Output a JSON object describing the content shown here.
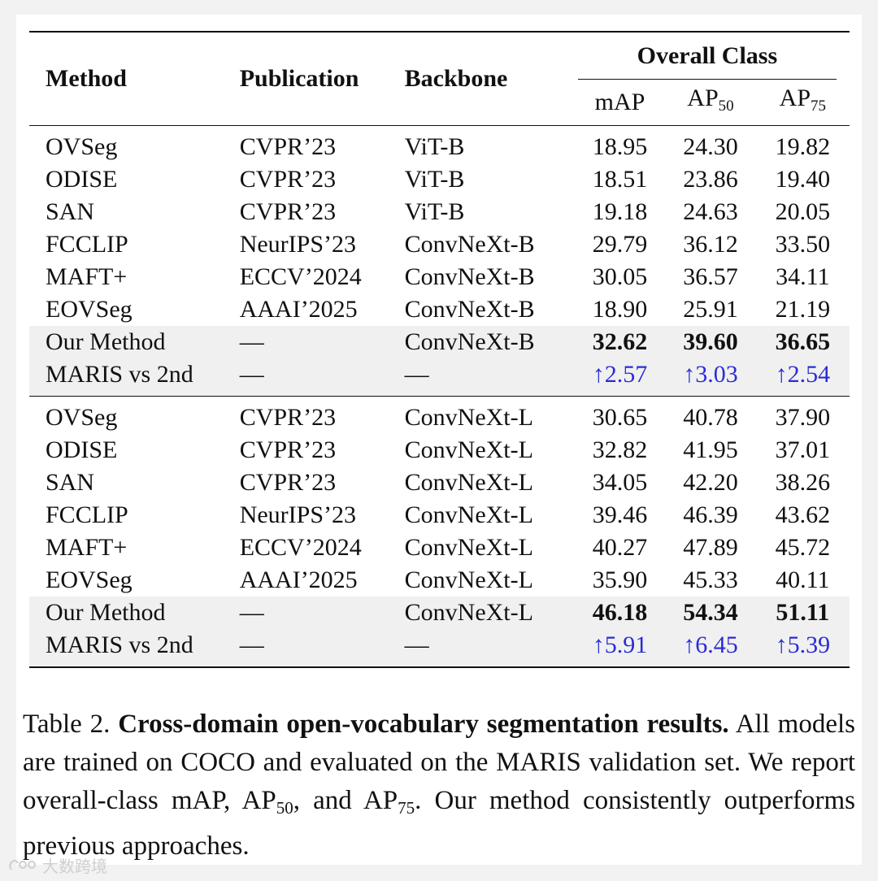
{
  "table": {
    "headers": {
      "method": "Method",
      "publication": "Publication",
      "backbone": "Backbone",
      "group": "Overall Class",
      "map": "mAP",
      "ap50_base": "AP",
      "ap50_sub": "50",
      "ap75_base": "AP",
      "ap75_sub": "75"
    },
    "block1": [
      {
        "method": "OVSeg",
        "pub": "CVPR’23",
        "bb": "ViT-B",
        "map": "18.95",
        "ap50": "24.30",
        "ap75": "19.82"
      },
      {
        "method": "ODISE",
        "pub": "CVPR’23",
        "bb": "ViT-B",
        "map": "18.51",
        "ap50": "23.86",
        "ap75": "19.40"
      },
      {
        "method": "SAN",
        "pub": "CVPR’23",
        "bb": "ViT-B",
        "map": "19.18",
        "ap50": "24.63",
        "ap75": "20.05"
      },
      {
        "method": "FCCLIP",
        "pub": "NeurIPS’23",
        "bb": "ConvNeXt-B",
        "map": "29.79",
        "ap50": "36.12",
        "ap75": "33.50"
      },
      {
        "method": "MAFT+",
        "pub": "ECCV’2024",
        "bb": "ConvNeXt-B",
        "map": "30.05",
        "ap50": "36.57",
        "ap75": "34.11"
      },
      {
        "method": "EOVSeg",
        "pub": "AAAI’2025",
        "bb": "ConvNeXt-B",
        "map": "18.90",
        "ap50": "25.91",
        "ap75": "21.19"
      },
      {
        "method": "Our Method",
        "pub": "—",
        "bb": "ConvNeXt-B",
        "map": "32.62",
        "ap50": "39.60",
        "ap75": "36.65"
      },
      {
        "method": "MARIS vs 2nd",
        "pub": "—",
        "bb": "—",
        "map": "↑2.57",
        "ap50": "↑3.03",
        "ap75": "↑2.54"
      }
    ],
    "block2": [
      {
        "method": "OVSeg",
        "pub": "CVPR’23",
        "bb": "ConvNeXt-L",
        "map": "30.65",
        "ap50": "40.78",
        "ap75": "37.90"
      },
      {
        "method": "ODISE",
        "pub": "CVPR’23",
        "bb": "ConvNeXt-L",
        "map": "32.82",
        "ap50": "41.95",
        "ap75": "37.01"
      },
      {
        "method": "SAN",
        "pub": "CVPR’23",
        "bb": "ConvNeXt-L",
        "map": "34.05",
        "ap50": "42.20",
        "ap75": "38.26"
      },
      {
        "method": "FCCLIP",
        "pub": "NeurIPS’23",
        "bb": "ConvNeXt-L",
        "map": "39.46",
        "ap50": "46.39",
        "ap75": "43.62"
      },
      {
        "method": "MAFT+",
        "pub": "ECCV’2024",
        "bb": "ConvNeXt-L",
        "map": "40.27",
        "ap50": "47.89",
        "ap75": "45.72"
      },
      {
        "method": "EOVSeg",
        "pub": "AAAI’2025",
        "bb": "ConvNeXt-L",
        "map": "35.90",
        "ap50": "45.33",
        "ap75": "40.11"
      },
      {
        "method": "Our Method",
        "pub": "—",
        "bb": "ConvNeXt-L",
        "map": "46.18",
        "ap50": "54.34",
        "ap75": "51.11"
      },
      {
        "method": "MARIS vs 2nd",
        "pub": "—",
        "bb": "—",
        "map": "↑5.91",
        "ap50": "↑6.45",
        "ap75": "↑5.39"
      }
    ]
  },
  "caption": {
    "label": "Table 2.",
    "bold": "Cross-domain open-vocabulary segmentation results.",
    "text_1": "All models are trained on COCO and evaluated on the MARIS validation set. We report overall-class mAP, AP",
    "sub_1": "50",
    "text_2": ", and AP",
    "sub_2": "75",
    "text_3": ". Our method consistently outperforms previous approaches."
  },
  "watermark": {
    "text": "大数跨境",
    "icon": "watermark-logo-icon"
  },
  "colors": {
    "improvement": "#2b2bd6",
    "shade": "#f0f0f0"
  }
}
